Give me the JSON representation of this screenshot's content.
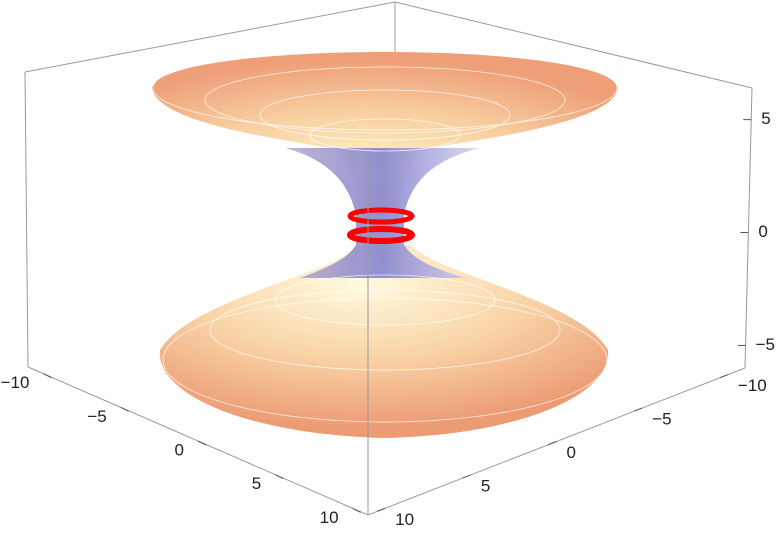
{
  "chart_data": {
    "type": "surface3d",
    "xlim": [
      -11,
      11
    ],
    "xticks": [
      -10,
      -5,
      0,
      5,
      10
    ],
    "ylim": [
      -11,
      11
    ],
    "yticks": [
      -10,
      -5,
      0,
      5,
      10
    ],
    "zlim": [
      -6,
      6.4
    ],
    "zticks": [
      -5,
      0,
      5
    ]
  }
}
